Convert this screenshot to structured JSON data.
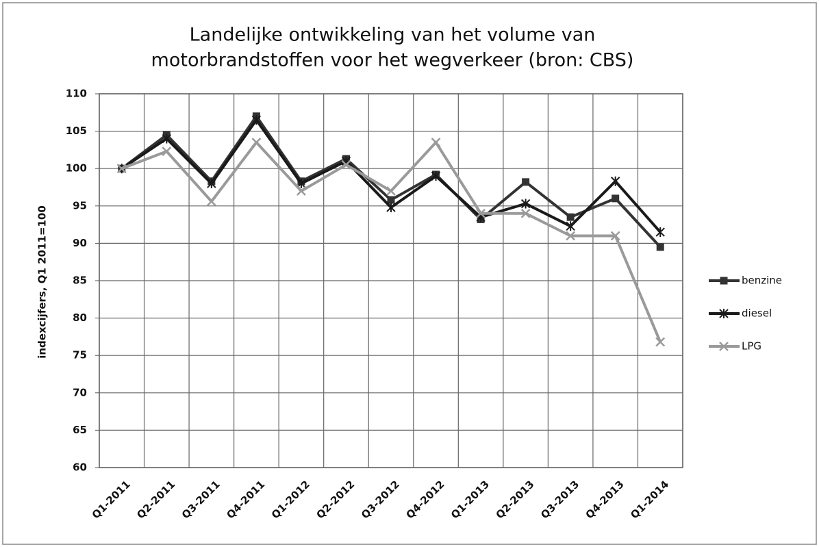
{
  "chart_data": {
    "type": "line",
    "title": [
      "Landelijke ontwikkeling van het volume van",
      "motorbrandstoffen voor het wegverkeer (bron: CBS)"
    ],
    "y_label": "indexcijfers, Q1 2011=100",
    "categories": [
      "Q1-2011",
      "Q2-2011",
      "Q3-2011",
      "Q4-2011",
      "Q1-2012",
      "Q2-2012",
      "Q3-2012",
      "Q4-2012",
      "Q1-2013",
      "Q2-2013",
      "Q3-2013",
      "Q4-2013",
      "Q1-2014"
    ],
    "series": [
      {
        "name": "benzine",
        "color": "#333333",
        "marker": "square",
        "values": [
          100,
          104.5,
          98.3,
          107,
          98.3,
          101.3,
          95.8,
          99.2,
          93.2,
          98.2,
          93.5,
          96,
          89.5
        ]
      },
      {
        "name": "diesel",
        "color": "#1a1a1a",
        "marker": "star",
        "values": [
          100,
          104,
          98,
          106.5,
          98,
          101,
          94.8,
          99,
          93.5,
          95.3,
          92.3,
          98.3,
          91.5
        ]
      },
      {
        "name": "LPG",
        "color": "#9a9a9a",
        "marker": "x",
        "values": [
          100,
          102.3,
          95.6,
          103.5,
          97,
          100.5,
          97,
          103.5,
          94,
          94,
          91,
          91,
          76.8
        ]
      }
    ],
    "ylim": [
      60,
      110
    ],
    "yticks": [
      60,
      65,
      70,
      75,
      80,
      85,
      90,
      95,
      100,
      105,
      110
    ],
    "grid": true,
    "legend": "right"
  }
}
